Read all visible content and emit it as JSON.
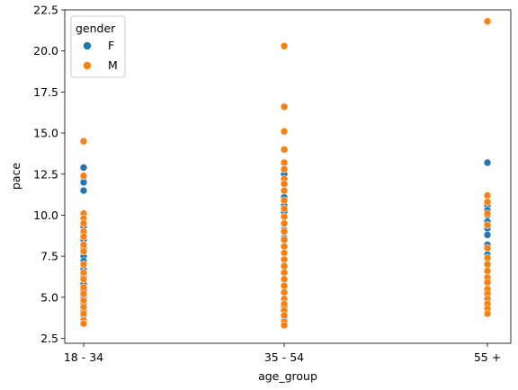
{
  "chart_data": {
    "type": "scatter",
    "title": "",
    "xlabel": "age_group",
    "ylabel": "pace",
    "categories": [
      "18 - 34",
      "35 - 54",
      "55 +"
    ],
    "ylim": [
      2.2,
      22.5
    ],
    "yticks": [
      2.5,
      5.0,
      7.5,
      10.0,
      12.5,
      15.0,
      17.5,
      20.0,
      22.5
    ],
    "ytick_labels": [
      "2.5",
      "5.0",
      "7.5",
      "10.0",
      "12.5",
      "15.0",
      "17.5",
      "20.0",
      "22.5"
    ],
    "grid": false,
    "legend": {
      "title": "gender",
      "placement": "top-left"
    },
    "series": [
      {
        "name": "F",
        "color": "#1f77b4",
        "points": [
          [
            "18 - 34",
            12.9
          ],
          [
            "18 - 34",
            12.3
          ],
          [
            "18 - 34",
            12.0
          ],
          [
            "18 - 34",
            11.5
          ],
          [
            "18 - 34",
            9.3
          ],
          [
            "18 - 34",
            8.9
          ],
          [
            "18 - 34",
            8.5
          ],
          [
            "18 - 34",
            8.0
          ],
          [
            "18 - 34",
            7.5
          ],
          [
            "18 - 34",
            7.2
          ],
          [
            "18 - 34",
            6.7
          ],
          [
            "18 - 34",
            6.3
          ],
          [
            "18 - 34",
            5.8
          ],
          [
            "18 - 34",
            5.4
          ],
          [
            "18 - 34",
            5.0
          ],
          [
            "18 - 34",
            4.6
          ],
          [
            "18 - 34",
            4.2
          ],
          [
            "18 - 34",
            3.9
          ],
          [
            "35 - 54",
            12.5
          ],
          [
            "35 - 54",
            12.0
          ],
          [
            "35 - 54",
            11.1
          ],
          [
            "35 - 54",
            10.6
          ],
          [
            "35 - 54",
            10.2
          ],
          [
            "35 - 54",
            9.1
          ],
          [
            "35 - 54",
            8.6
          ],
          [
            "35 - 54",
            4.4
          ],
          [
            "35 - 54",
            3.6
          ],
          [
            "55 +",
            13.2
          ],
          [
            "55 +",
            10.6
          ],
          [
            "55 +",
            10.3
          ],
          [
            "55 +",
            10.0
          ],
          [
            "55 +",
            9.6
          ],
          [
            "55 +",
            9.2
          ],
          [
            "55 +",
            8.8
          ],
          [
            "55 +",
            8.2
          ],
          [
            "55 +",
            7.6
          ]
        ]
      },
      {
        "name": "M",
        "color": "#ff7f0e",
        "points": [
          [
            "18 - 34",
            14.5
          ],
          [
            "18 - 34",
            12.4
          ],
          [
            "18 - 34",
            10.1
          ],
          [
            "18 - 34",
            9.8
          ],
          [
            "18 - 34",
            9.5
          ],
          [
            "18 - 34",
            9.0
          ],
          [
            "18 - 34",
            8.7
          ],
          [
            "18 - 34",
            8.2
          ],
          [
            "18 - 34",
            7.8
          ],
          [
            "18 - 34",
            7.0
          ],
          [
            "18 - 34",
            6.5
          ],
          [
            "18 - 34",
            6.1
          ],
          [
            "18 - 34",
            5.6
          ],
          [
            "18 - 34",
            5.2
          ],
          [
            "18 - 34",
            4.8
          ],
          [
            "18 - 34",
            4.4
          ],
          [
            "18 - 34",
            4.0
          ],
          [
            "18 - 34",
            3.6
          ],
          [
            "18 - 34",
            3.4
          ],
          [
            "35 - 54",
            20.3
          ],
          [
            "35 - 54",
            16.6
          ],
          [
            "35 - 54",
            15.1
          ],
          [
            "35 - 54",
            14.0
          ],
          [
            "35 - 54",
            13.2
          ],
          [
            "35 - 54",
            12.8
          ],
          [
            "35 - 54",
            12.2
          ],
          [
            "35 - 54",
            11.9
          ],
          [
            "35 - 54",
            11.5
          ],
          [
            "35 - 54",
            10.9
          ],
          [
            "35 - 54",
            10.4
          ],
          [
            "35 - 54",
            9.9
          ],
          [
            "35 - 54",
            9.5
          ],
          [
            "35 - 54",
            9.0
          ],
          [
            "35 - 54",
            8.5
          ],
          [
            "35 - 54",
            8.1
          ],
          [
            "35 - 54",
            7.7
          ],
          [
            "35 - 54",
            7.3
          ],
          [
            "35 - 54",
            6.9
          ],
          [
            "35 - 54",
            6.5
          ],
          [
            "35 - 54",
            6.1
          ],
          [
            "35 - 54",
            5.7
          ],
          [
            "35 - 54",
            5.3
          ],
          [
            "35 - 54",
            4.9
          ],
          [
            "35 - 54",
            4.6
          ],
          [
            "35 - 54",
            4.2
          ],
          [
            "35 - 54",
            3.9
          ],
          [
            "35 - 54",
            3.5
          ],
          [
            "35 - 54",
            3.3
          ],
          [
            "55 +",
            21.8
          ],
          [
            "55 +",
            11.2
          ],
          [
            "55 +",
            10.8
          ],
          [
            "55 +",
            10.1
          ],
          [
            "55 +",
            9.4
          ],
          [
            "55 +",
            8.0
          ],
          [
            "55 +",
            7.4
          ],
          [
            "55 +",
            7.0
          ],
          [
            "55 +",
            6.6
          ],
          [
            "55 +",
            6.2
          ],
          [
            "55 +",
            5.9
          ],
          [
            "55 +",
            5.5
          ],
          [
            "55 +",
            5.2
          ],
          [
            "55 +",
            4.9
          ],
          [
            "55 +",
            4.6
          ],
          [
            "55 +",
            4.3
          ],
          [
            "55 +",
            4.0
          ]
        ]
      }
    ]
  }
}
